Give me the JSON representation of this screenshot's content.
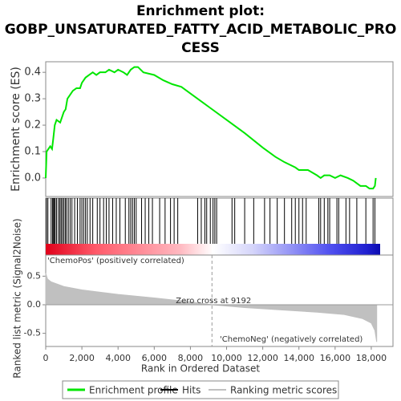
{
  "chart_data": {
    "type": "line",
    "title": [
      "Enrichment plot:",
      "GOBP_UNSATURATED_FATTY_ACID_METABOLIC_PRO",
      "CESS"
    ],
    "xlabel": "Rank in Ordered Dataset",
    "ylabel": "Enrichment score (ES)",
    "y2label": "Ranked list metric (Signal2Noise)",
    "xlim": [
      0,
      19200
    ],
    "xticks": [
      {
        "value": 0,
        "label": "0"
      },
      {
        "value": 2000,
        "label": "2,000"
      },
      {
        "value": 4000,
        "label": "4,000"
      },
      {
        "value": 6000,
        "label": "6,000"
      },
      {
        "value": 8000,
        "label": "8,000"
      },
      {
        "value": 10000,
        "label": "10,000"
      },
      {
        "value": 12000,
        "label": "12,000"
      },
      {
        "value": 14000,
        "label": "14,000"
      },
      {
        "value": 16000,
        "label": "16,000"
      },
      {
        "value": 18000,
        "label": "18,000"
      }
    ],
    "ylim": [
      -0.07,
      0.44
    ],
    "yticks": [
      {
        "value": 0,
        "label": "0.0"
      },
      0.1,
      0.2,
      0.3,
      0.4
    ],
    "y2lim": [
      -0.73,
      0.87
    ],
    "y2ticks": [
      0.5,
      {
        "value": 0,
        "label": "0.0"
      },
      -0.5
    ],
    "zero_cross": 9192,
    "annotations": [
      "'ChemoPos' (positively correlated)",
      "Zero cross at 9192",
      "'ChemoNeg' (negatively correlated)"
    ],
    "series": [
      {
        "name": "Enrichment profile",
        "color": "#00e600",
        "x": [
          0,
          50,
          150,
          250,
          350,
          420,
          500,
          600,
          800,
          900,
          1000,
          1100,
          1200,
          1300,
          1500,
          1700,
          1900,
          2000,
          2200,
          2400,
          2600,
          2800,
          3000,
          3300,
          3500,
          3800,
          4000,
          4300,
          4500,
          4700,
          4900,
          5100,
          5400,
          6000,
          6500,
          7000,
          7500,
          8000,
          9000,
          10000,
          11000,
          12000,
          12700,
          13200,
          13800,
          14000,
          14500,
          15000,
          15200,
          15400,
          15700,
          16000,
          16300,
          16700,
          17000,
          17400,
          17700,
          17900,
          18100,
          18200,
          18250
        ],
        "values": [
          0.0,
          0.1,
          0.11,
          0.12,
          0.11,
          0.15,
          0.2,
          0.22,
          0.21,
          0.23,
          0.25,
          0.26,
          0.3,
          0.31,
          0.33,
          0.34,
          0.34,
          0.36,
          0.38,
          0.39,
          0.4,
          0.39,
          0.4,
          0.4,
          0.41,
          0.4,
          0.41,
          0.4,
          0.39,
          0.41,
          0.42,
          0.42,
          0.4,
          0.39,
          0.37,
          0.355,
          0.345,
          0.32,
          0.27,
          0.22,
          0.17,
          0.115,
          0.08,
          0.06,
          0.04,
          0.03,
          0.03,
          0.01,
          0.0,
          0.01,
          0.01,
          0.0,
          0.01,
          0.0,
          -0.01,
          -0.03,
          -0.03,
          -0.04,
          -0.04,
          -0.03,
          0.0
        ]
      },
      {
        "name": "Hits",
        "color": "#000000",
        "x": [
          40,
          120,
          300,
          380,
          430,
          480,
          520,
          600,
          700,
          780,
          850,
          920,
          1000,
          1080,
          1150,
          1250,
          1350,
          1450,
          1600,
          1750,
          1900,
          2000,
          2100,
          2200,
          2300,
          2450,
          2600,
          2850,
          3000,
          3200,
          3350,
          3500,
          3700,
          3900,
          4100,
          4400,
          4600,
          4700,
          4800,
          4900,
          5000,
          5300,
          5500,
          5700,
          5900,
          6300,
          6600,
          6900,
          7100,
          7300,
          8400,
          8600,
          8800,
          8900,
          9100,
          9250,
          9350,
          9450,
          10300,
          10450,
          11000,
          11500,
          12100,
          12400,
          12800,
          13200,
          13600,
          13800,
          14000,
          14200,
          14400,
          15100,
          15200,
          15400,
          15600,
          15700,
          16100,
          16200,
          16600,
          16800,
          17200,
          17700,
          18100,
          18200
        ]
      },
      {
        "name": "Ranking metric scores",
        "color": "#c0c0c0",
        "axis": "y2",
        "x": [
          0,
          100,
          300,
          1000,
          2000,
          4000,
          6000,
          8000,
          9192,
          11000,
          13000,
          15000,
          16500,
          17500,
          18000,
          18200,
          18300
        ],
        "values": [
          0.55,
          0.45,
          0.4,
          0.32,
          0.26,
          0.18,
          0.12,
          0.05,
          0.0,
          -0.05,
          -0.09,
          -0.13,
          -0.17,
          -0.24,
          -0.32,
          -0.45,
          -0.65
        ]
      }
    ]
  }
}
